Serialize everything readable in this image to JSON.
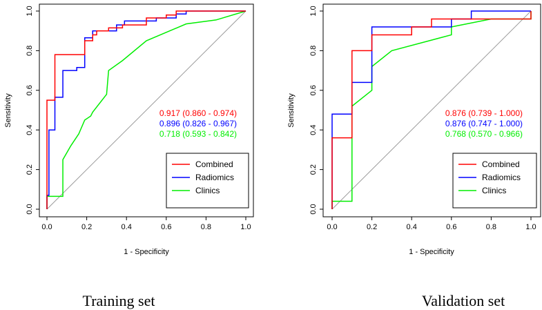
{
  "colors": {
    "Combined": "#ff0000",
    "Radiomics": "#0000ff",
    "Clinics": "#00ee00",
    "reference": "#9a9a9a"
  },
  "chart_data": [
    {
      "type": "line",
      "title": "Training set",
      "xlabel": "1 - Specificity",
      "ylabel": "Sensitivity",
      "xlim": [
        0,
        1
      ],
      "ylim": [
        0,
        1
      ],
      "xticks": [
        "0.0",
        "0.2",
        "0.4",
        "0.6",
        "0.8",
        "1.0"
      ],
      "yticks": [
        "0.0",
        "0.2",
        "0.4",
        "0.6",
        "0.8",
        "1.0"
      ],
      "legend": [
        "Combined",
        "Radiomics",
        "Clinics"
      ],
      "auc_labels": [
        {
          "series": "Combined",
          "text": "0.917 (0.860 - 0.974)"
        },
        {
          "series": "Radiomics",
          "text": "0.896 (0.826 - 0.967)"
        },
        {
          "series": "Clinics",
          "text": "0.718 (0.593 - 0.842)"
        }
      ],
      "series": [
        {
          "name": "Combined",
          "points": [
            [
              0,
              0
            ],
            [
              0,
              0.55
            ],
            [
              0.04,
              0.55
            ],
            [
              0.04,
              0.78
            ],
            [
              0.19,
              0.78
            ],
            [
              0.19,
              0.85
            ],
            [
              0.23,
              0.85
            ],
            [
              0.23,
              0.88
            ],
            [
              0.25,
              0.88
            ],
            [
              0.25,
              0.9
            ],
            [
              0.31,
              0.9
            ],
            [
              0.31,
              0.915
            ],
            [
              0.38,
              0.915
            ],
            [
              0.38,
              0.93
            ],
            [
              0.5,
              0.93
            ],
            [
              0.5,
              0.965
            ],
            [
              0.6,
              0.965
            ],
            [
              0.6,
              0.98
            ],
            [
              0.65,
              0.98
            ],
            [
              0.65,
              1.0
            ],
            [
              1,
              1
            ]
          ]
        },
        {
          "name": "Radiomics",
          "points": [
            [
              0,
              0
            ],
            [
              0,
              0.07
            ],
            [
              0.01,
              0.07
            ],
            [
              0.01,
              0.4
            ],
            [
              0.04,
              0.4
            ],
            [
              0.04,
              0.565
            ],
            [
              0.08,
              0.565
            ],
            [
              0.08,
              0.7
            ],
            [
              0.15,
              0.7
            ],
            [
              0.15,
              0.715
            ],
            [
              0.19,
              0.715
            ],
            [
              0.19,
              0.865
            ],
            [
              0.23,
              0.865
            ],
            [
              0.23,
              0.9
            ],
            [
              0.35,
              0.9
            ],
            [
              0.35,
              0.93
            ],
            [
              0.39,
              0.93
            ],
            [
              0.39,
              0.95
            ],
            [
              0.55,
              0.95
            ],
            [
              0.55,
              0.965
            ],
            [
              0.65,
              0.965
            ],
            [
              0.65,
              0.985
            ],
            [
              0.7,
              0.985
            ],
            [
              0.7,
              1.0
            ],
            [
              1,
              1
            ]
          ]
        },
        {
          "name": "Clinics",
          "points": [
            [
              0,
              0
            ],
            [
              0,
              0.065
            ],
            [
              0.08,
              0.065
            ],
            [
              0.08,
              0.25
            ],
            [
              0.12,
              0.32
            ],
            [
              0.16,
              0.38
            ],
            [
              0.19,
              0.45
            ],
            [
              0.22,
              0.47
            ],
            [
              0.23,
              0.49
            ],
            [
              0.3,
              0.58
            ],
            [
              0.31,
              0.7
            ],
            [
              0.38,
              0.75
            ],
            [
              0.5,
              0.85
            ],
            [
              0.7,
              0.935
            ],
            [
              0.85,
              0.955
            ],
            [
              1,
              1
            ]
          ]
        }
      ]
    },
    {
      "type": "line",
      "title": "Validation set",
      "xlabel": "1 - Specificity",
      "ylabel": "Sensitivity",
      "xlim": [
        0,
        1
      ],
      "ylim": [
        0,
        1
      ],
      "xticks": [
        "0.0",
        "0.2",
        "0.4",
        "0.6",
        "0.8",
        "1.0"
      ],
      "yticks": [
        "0.0",
        "0.2",
        "0.4",
        "0.6",
        "0.8",
        "1.0"
      ],
      "legend": [
        "Combined",
        "Radiomics",
        "Clinics"
      ],
      "auc_labels": [
        {
          "series": "Combined",
          "text": "0.876 (0.739 - 1.000)"
        },
        {
          "series": "Radiomics",
          "text": "0.876 (0.747 - 1.000)"
        },
        {
          "series": "Clinics",
          "text": "0.768 (0.570 - 0.966)"
        }
      ],
      "series": [
        {
          "name": "Combined",
          "points": [
            [
              0,
              0
            ],
            [
              0,
              0.36
            ],
            [
              0.1,
              0.36
            ],
            [
              0.1,
              0.8
            ],
            [
              0.2,
              0.8
            ],
            [
              0.2,
              0.88
            ],
            [
              0.4,
              0.88
            ],
            [
              0.4,
              0.92
            ],
            [
              0.5,
              0.92
            ],
            [
              0.5,
              0.96
            ],
            [
              0.6,
              0.96
            ],
            [
              0.6,
              0.96
            ],
            [
              1,
              0.96
            ],
            [
              1,
              1
            ]
          ]
        },
        {
          "name": "Radiomics",
          "points": [
            [
              0,
              0
            ],
            [
              0,
              0.48
            ],
            [
              0.1,
              0.48
            ],
            [
              0.1,
              0.64
            ],
            [
              0.2,
              0.64
            ],
            [
              0.2,
              0.92
            ],
            [
              0.6,
              0.92
            ],
            [
              0.6,
              0.96
            ],
            [
              0.7,
              0.96
            ],
            [
              0.7,
              1.0
            ],
            [
              1,
              1
            ]
          ]
        },
        {
          "name": "Clinics",
          "points": [
            [
              0,
              0
            ],
            [
              0,
              0.04
            ],
            [
              0.1,
              0.04
            ],
            [
              0.1,
              0.52
            ],
            [
              0.2,
              0.6
            ],
            [
              0.2,
              0.72
            ],
            [
              0.3,
              0.8
            ],
            [
              0.6,
              0.88
            ],
            [
              0.6,
              0.92
            ],
            [
              0.8,
              0.96
            ],
            [
              1,
              0.96
            ],
            [
              1,
              1
            ]
          ]
        }
      ]
    }
  ]
}
